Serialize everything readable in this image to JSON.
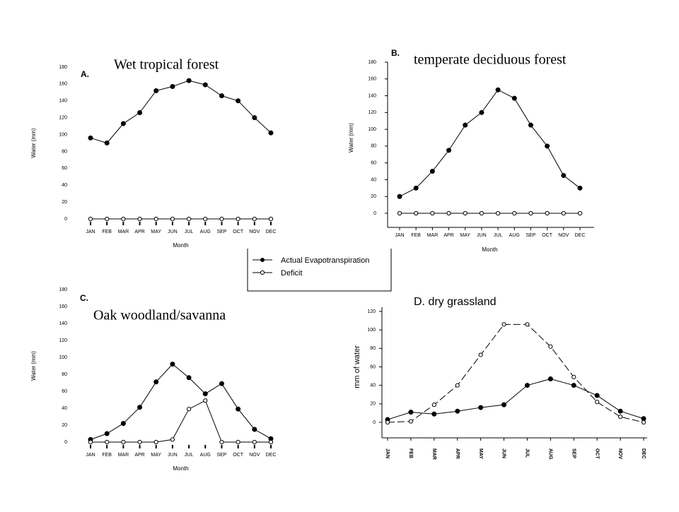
{
  "chart_data": [
    {
      "type": "line",
      "panel": "A.",
      "title": "Wet tropical forest",
      "x_label": "Month",
      "y_label": "Water (mm)",
      "categories": [
        "JAN",
        "FEB",
        "MAR",
        "APR",
        "MAY",
        "JUN",
        "JUL",
        "AUG",
        "SEP",
        "OCT",
        "NOV",
        "DEC"
      ],
      "ylim": [
        0,
        180
      ],
      "yticks": [
        0,
        20,
        40,
        60,
        80,
        100,
        120,
        140,
        160,
        180
      ],
      "series": [
        {
          "name": "Actual Evapotranspiration",
          "color": "#000000",
          "marker": "filled",
          "values": [
            96,
            90,
            113,
            126,
            152,
            157,
            164,
            159,
            146,
            140,
            120,
            102
          ]
        },
        {
          "name": "Deficit",
          "color": "#000000",
          "marker": "open",
          "values": [
            0,
            0,
            0,
            0,
            0,
            0,
            0,
            0,
            0,
            0,
            0,
            0
          ]
        }
      ]
    },
    {
      "type": "line",
      "panel": "B.",
      "title": "temperate deciduous forest",
      "x_label": "Month",
      "y_label": "Water (mm)",
      "categories": [
        "JAN",
        "FEB",
        "MAR",
        "APR",
        "MAY",
        "JUN",
        "JUL",
        "AUG",
        "SEP",
        "OCT",
        "NOV",
        "DEC"
      ],
      "ylim": [
        0,
        180
      ],
      "yticks": [
        0,
        20,
        40,
        60,
        80,
        100,
        120,
        140,
        160,
        180
      ],
      "series": [
        {
          "color": "#000000",
          "marker": "filled",
          "values": [
            20,
            30,
            50,
            75,
            105,
            120,
            147,
            137,
            105,
            80,
            45,
            30
          ]
        },
        {
          "color": "#000000",
          "marker": "open",
          "values": [
            0,
            0,
            0,
            0,
            0,
            0,
            0,
            0,
            0,
            0,
            0,
            0
          ]
        }
      ]
    },
    {
      "type": "line",
      "panel": "C.",
      "title": "Oak woodland/savanna",
      "x_label": "Month",
      "y_label": "Water (mm)",
      "categories": [
        "JAN",
        "FEB",
        "MAR",
        "APR",
        "MAY",
        "JUN",
        "JUL",
        "AUG",
        "SEP",
        "OCT",
        "NOV",
        "DEC"
      ],
      "ylim": [
        0,
        180
      ],
      "yticks": [
        0,
        20,
        40,
        60,
        80,
        100,
        120,
        140,
        160,
        180
      ],
      "series": [
        {
          "color": "#000000",
          "marker": "filled",
          "values": [
            3,
            10,
            22,
            41,
            71,
            92,
            76,
            57,
            69,
            39,
            15,
            4
          ]
        },
        {
          "color": "#000000",
          "marker": "open",
          "values": [
            0,
            0,
            0,
            0,
            0,
            3,
            39,
            49,
            0,
            0,
            0,
            0
          ]
        }
      ]
    },
    {
      "type": "line",
      "title": "D. dry grassland",
      "y_label": "mm of water",
      "categories": [
        "JAN",
        "FEB",
        "MAR",
        "APR",
        "MAY",
        "JUN",
        "JUL",
        "AUG",
        "SEP",
        "OCT",
        "NOV",
        "DEC"
      ],
      "ylim": [
        0,
        120
      ],
      "yticks": [
        0,
        20,
        40,
        60,
        80,
        100,
        120
      ],
      "series": [
        {
          "color": "#000000",
          "marker": "filled",
          "values": [
            3,
            11,
            9,
            12,
            16,
            19,
            40,
            47,
            40,
            29,
            12,
            4
          ]
        },
        {
          "color": "#000000",
          "marker": "open",
          "dashed": true,
          "values": [
            0,
            1,
            19,
            40,
            73,
            106,
            106,
            82,
            49,
            22,
            6,
            0
          ]
        }
      ]
    }
  ]
}
